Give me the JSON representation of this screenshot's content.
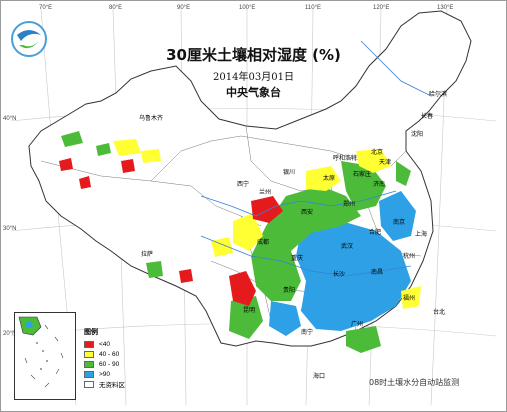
{
  "title": "30厘米土壤相对湿度 (%)",
  "date": "2014年03月01日",
  "agency": "中央气象台",
  "source_note": "08时土壤水分自动站监测",
  "legend": {
    "title": "图例",
    "items": [
      {
        "label": "<40",
        "color": "#e41a1c"
      },
      {
        "label": "40 - 60",
        "color": "#ffff33"
      },
      {
        "label": "60 - 90",
        "color": "#4dbb3a"
      },
      {
        "label": ">90",
        "color": "#2ea1e6"
      },
      {
        "label": "无资料区",
        "color": "#ffffff"
      }
    ]
  },
  "longitude_ticks": [
    "70°E",
    "80°E",
    "90°E",
    "100°E",
    "110°E",
    "120°E",
    "130°E"
  ],
  "latitude_ticks": [
    "40°N",
    "30°N",
    "20°N"
  ],
  "cities": [
    "乌鲁木齐",
    "呼和浩特",
    "北京",
    "天津",
    "石家庄",
    "太原",
    "济南",
    "银川",
    "兰州",
    "西宁",
    "西安",
    "郑州",
    "南京",
    "合肥",
    "上海",
    "武汉",
    "杭州",
    "成都",
    "重庆",
    "长沙",
    "南昌",
    "福州",
    "贵阳",
    "昆明",
    "南宁",
    "广州",
    "台北",
    "海口",
    "拉萨",
    "沈阳",
    "长春",
    "哈尔滨"
  ]
}
